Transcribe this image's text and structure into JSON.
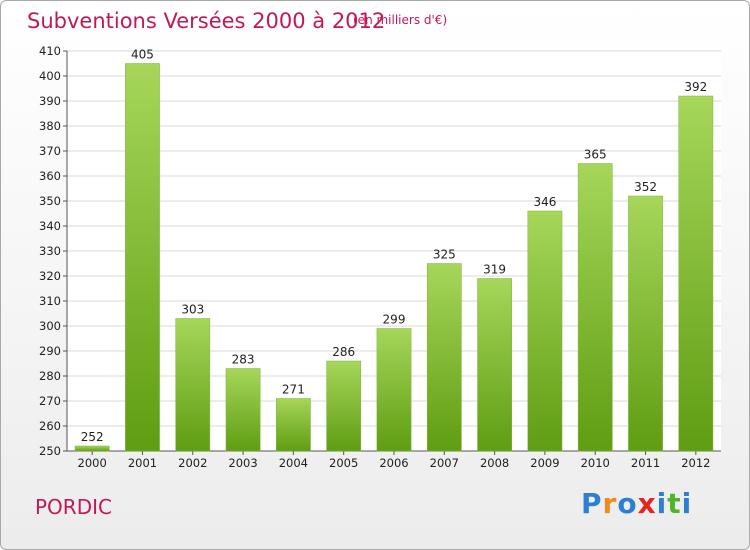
{
  "title": "Subventions Versées 2000 à 2012",
  "subtitle": "(en milliers d'€)",
  "place": "PORDIC",
  "brand": {
    "letters": [
      "P",
      "r",
      "o",
      "x",
      "i",
      "t",
      "i"
    ],
    "colors": [
      "#2e7fd1",
      "#f08a1c",
      "#2e7fd1",
      "#e52420",
      "#2e7fd1",
      "#54b32c",
      "#2e7fd1"
    ]
  },
  "colors": {
    "title": "#c2185b",
    "bar_top": "#a6d65a",
    "bar_bottom": "#5f9d12",
    "grid": "#d8d8d8"
  },
  "chart_data": {
    "type": "bar",
    "categories": [
      "2000",
      "2001",
      "2002",
      "2003",
      "2004",
      "2005",
      "2006",
      "2007",
      "2008",
      "2009",
      "2010",
      "2011",
      "2012"
    ],
    "values": [
      252,
      405,
      303,
      283,
      271,
      286,
      299,
      325,
      319,
      346,
      365,
      352,
      392
    ],
    "ylim": [
      250,
      410
    ],
    "yticks": [
      250,
      260,
      270,
      280,
      290,
      300,
      310,
      320,
      330,
      340,
      350,
      360,
      370,
      380,
      390,
      400,
      410
    ],
    "grid": true,
    "title": "Subventions Versées 2000 à 2012",
    "xlabel": "",
    "ylabel": ""
  }
}
